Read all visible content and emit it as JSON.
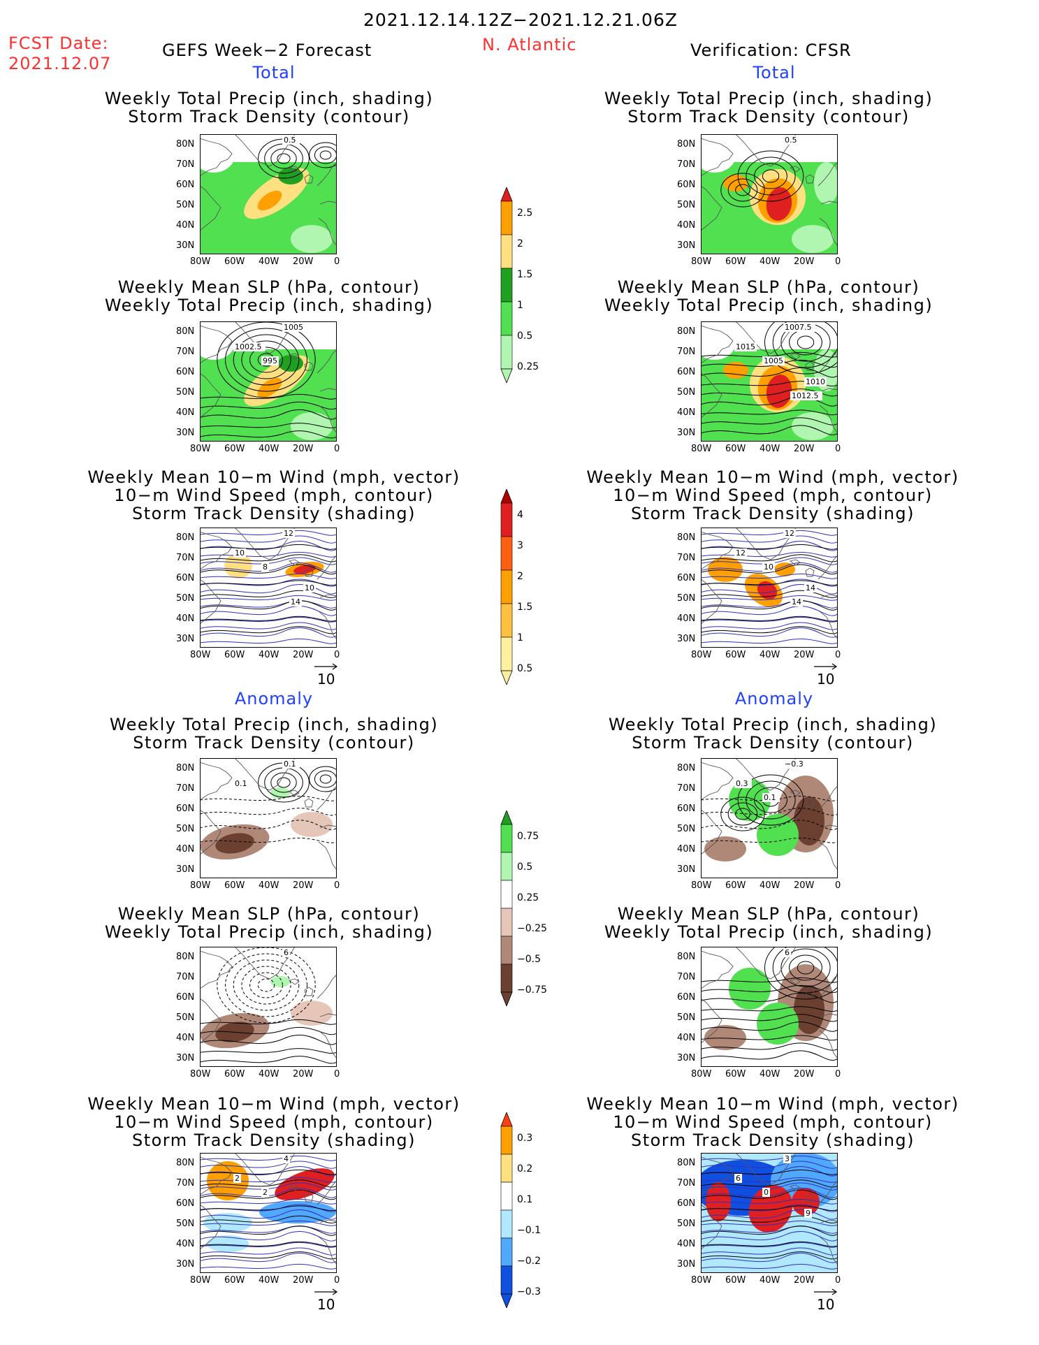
{
  "header": {
    "date_range": "2021.12.14.12Z−2021.12.21.06Z",
    "fcst_label": "FCST Date:",
    "fcst_date": "2021.12.07",
    "left_title": "GEFS Week−2 Forecast",
    "region": "N. Atlantic",
    "right_title": "Verification: CFSR"
  },
  "sections": {
    "total": "Total",
    "anomaly": "Anomaly"
  },
  "panel_titles": {
    "precip_track": [
      "Weekly Total Precip (inch, shading)",
      "Storm Track Density (contour)"
    ],
    "slp_precip": [
      "Weekly Mean SLP (hPa, contour)",
      "Weekly Total Precip (inch, shading)"
    ],
    "wind_track": [
      "Weekly Mean 10−m Wind (mph, vector)",
      "10−m Wind Speed (mph, contour)",
      "Storm Track Density (shading)"
    ]
  },
  "axes": {
    "lat_ticks": [
      "80N",
      "70N",
      "60N",
      "50N",
      "40N",
      "30N"
    ],
    "lon_ticks": [
      "80W",
      "60W",
      "40W",
      "20W",
      "0"
    ]
  },
  "vector_ref": "10",
  "colorbars": [
    {
      "labels": [
        "2.5",
        "2",
        "1.5",
        "1",
        "0.5",
        "0.25"
      ],
      "colors": [
        "#e02020",
        "#ffa000",
        "#ffe080",
        "#20a020",
        "#50e050",
        "#b0f5b0"
      ]
    },
    {
      "labels": [
        "4",
        "3",
        "2",
        "1.5",
        "1",
        "0.5"
      ],
      "colors": [
        "#b00000",
        "#e02020",
        "#ff6010",
        "#ffa000",
        "#ffc040",
        "#fff0a0"
      ]
    },
    {
      "labels": [
        "0.75",
        "0.5",
        "0.25",
        "−0.25",
        "−0.5",
        "−0.75"
      ],
      "colors": [
        "#20a020",
        "#50e050",
        "#b0f5b0",
        "#ffffff",
        "#e6c6b8",
        "#b08878",
        "#6b4030"
      ]
    },
    {
      "labels": [
        "0.3",
        "0.2",
        "0.1",
        "−0.1",
        "−0.2",
        "−0.3"
      ],
      "colors": [
        "#ff4010",
        "#ffa000",
        "#ffe080",
        "#ffffff",
        "#b0e8ff",
        "#50a8ff",
        "#1050e0"
      ]
    }
  ],
  "contour_labels": {
    "fcst_total_track": [
      "0.5"
    ],
    "cfsr_total_track": [
      "0.5"
    ],
    "fcst_total_slp": [
      "1005",
      "1002.5",
      "995"
    ],
    "cfsr_total_slp": [
      "1007.5",
      "1015",
      "1005",
      "1010",
      "1012.5"
    ],
    "fcst_total_wind": [
      "12",
      "10",
      "8",
      "10",
      "14"
    ],
    "cfsr_total_wind": [
      "12",
      "12",
      "10",
      "14",
      "14"
    ],
    "fcst_anom_track": [
      "0.1",
      "0.1"
    ],
    "cfsr_anom_track": [
      "−0.3",
      "0.3",
      "0.1"
    ],
    "fcst_anom_slp": [
      "6"
    ],
    "cfsr_anom_slp": [
      "6"
    ],
    "fcst_anom_wind": [
      "4",
      "2",
      "2"
    ],
    "cfsr_anom_wind": [
      "3",
      "6",
      "0",
      "9"
    ]
  }
}
